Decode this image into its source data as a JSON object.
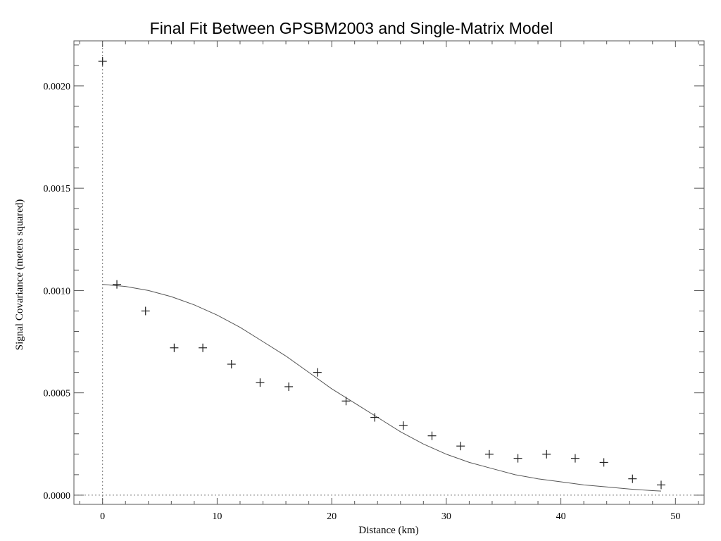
{
  "chart_data": {
    "type": "scatter",
    "title": "Final Fit Between GPSBM2003 and Single-Matrix Model",
    "xlabel": "Distance (km)",
    "ylabel": "Signal Covariance (meters squared)",
    "xlim": [
      -2.5,
      52.5
    ],
    "ylim": [
      -4.5e-05,
      0.00222
    ],
    "x_ticks": [
      0,
      10,
      20,
      30,
      40,
      50
    ],
    "x_tick_labels": [
      "0",
      "10",
      "20",
      "30",
      "40",
      "50"
    ],
    "y_ticks": [
      0,
      0.0005,
      0.001,
      0.0015,
      0.002
    ],
    "y_tick_labels": [
      "0.0000",
      "0.0005",
      "0.0010",
      "0.0015",
      "0.0020"
    ],
    "grid": false,
    "series": [
      {
        "kind": "points",
        "marker": "plus",
        "x": [
          0,
          1.25,
          3.75,
          6.25,
          8.75,
          11.25,
          13.75,
          16.25,
          18.75,
          21.25,
          23.75,
          26.25,
          28.75,
          31.25,
          33.75,
          36.25,
          38.75,
          41.25,
          43.75,
          46.25,
          48.75
        ],
        "y": [
          0.00212,
          0.00103,
          0.0009,
          0.00072,
          0.00072,
          0.00064,
          0.00055,
          0.00053,
          0.0006,
          0.00046,
          0.00038,
          0.00034,
          0.00029,
          0.00024,
          0.0002,
          0.00018,
          0.0002,
          0.00018,
          0.00016,
          8e-05,
          5e-05
        ]
      },
      {
        "kind": "line",
        "x": [
          0,
          2,
          4,
          6,
          8,
          10,
          12,
          14,
          16,
          18,
          20,
          22,
          24,
          26,
          28,
          30,
          32,
          34,
          36,
          38,
          40,
          42,
          44,
          46,
          48,
          48.75
        ],
        "y": [
          0.00103,
          0.00102,
          0.001,
          0.00097,
          0.00093,
          0.00088,
          0.00082,
          0.00075,
          0.00068,
          0.0006,
          0.00052,
          0.00045,
          0.00038,
          0.00031,
          0.00025,
          0.0002,
          0.00016,
          0.00013,
          0.0001,
          8e-05,
          6.5e-05,
          5e-05,
          4e-05,
          3e-05,
          2.2e-05,
          2e-05
        ]
      }
    ],
    "reference_lines": {
      "x_at": 0,
      "y_at": 0
    }
  }
}
